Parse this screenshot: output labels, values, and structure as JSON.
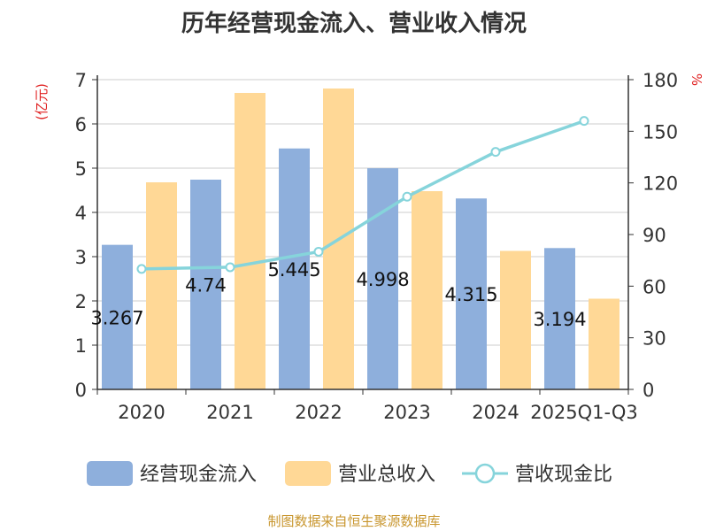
{
  "chart_data": {
    "type": "bar",
    "title": "历年经营现金流入、营业收入情况",
    "categories": [
      "2020",
      "2021",
      "2022",
      "2023",
      "2024",
      "2025Q1-Q3"
    ],
    "y_left": {
      "label": "(亿元)",
      "ticks": [
        "0",
        "1",
        "2",
        "3",
        "4",
        "5",
        "6",
        "7"
      ],
      "range": [
        0,
        7
      ]
    },
    "y_right": {
      "label": "%",
      "ticks": [
        "0",
        "30",
        "60",
        "90",
        "120",
        "150",
        "180"
      ],
      "range": [
        0,
        180
      ]
    },
    "grid": true,
    "legend_position": "bottom",
    "series": [
      {
        "name": "经营现金流入",
        "kind": "bar",
        "axis": "left",
        "color": "#8eafdc",
        "values": [
          3.267,
          4.74,
          5.445,
          4.998,
          4.315,
          3.194
        ],
        "labels": [
          "3.267",
          "4.74",
          "5.445",
          "4.998",
          "4.315",
          "3.194"
        ]
      },
      {
        "name": "营业总收入",
        "kind": "bar",
        "axis": "left",
        "color": "#ffd896",
        "values": [
          4.68,
          6.7,
          6.8,
          4.48,
          3.13,
          2.05
        ]
      },
      {
        "name": "营收现金比",
        "kind": "line",
        "axis": "right",
        "color": "#86d4db",
        "values": [
          70,
          71,
          80,
          112,
          138,
          156
        ]
      }
    ]
  },
  "source": "制图数据来自恒生聚源数据库"
}
